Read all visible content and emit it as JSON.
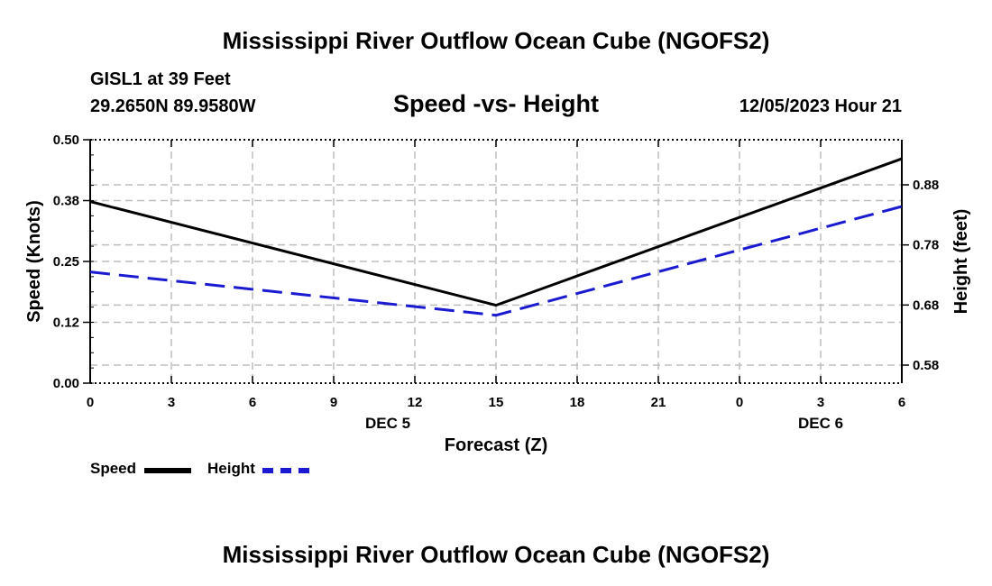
{
  "header": {
    "title": "Mississippi River Outflow Ocean Cube (NGOFS2)",
    "station": "GISL1 at 39 Feet",
    "coords": "29.2650N  89.9580W",
    "subtitle": "Speed -vs- Height",
    "datetime": "12/05/2023 Hour 21"
  },
  "footer": {
    "title": "Mississippi River Outflow Ocean Cube (NGOFS2)"
  },
  "legend": {
    "speed_label": "Speed",
    "height_label": "Height"
  },
  "colors": {
    "speed": "#000000",
    "height": "#1a1ad0",
    "grid": "#bdbdbd"
  },
  "chart_data": {
    "type": "line",
    "title": "Speed -vs- Height",
    "xlabel": "Forecast (Z)",
    "ylabel": "Speed (Knots)",
    "y2label": "Height (feet)",
    "x": [
      0,
      3,
      6,
      9,
      12,
      15,
      18,
      21,
      24,
      27,
      30
    ],
    "x_tick_labels": [
      "0",
      "3",
      "6",
      "9",
      "12",
      "15",
      "18",
      "21",
      "0",
      "3",
      "6"
    ],
    "x_date_labels": [
      {
        "x": 11,
        "label": "DEC 5"
      },
      {
        "x": 27,
        "label": "DEC 6"
      }
    ],
    "xlim": [
      0,
      30
    ],
    "ylim": [
      0,
      0.5
    ],
    "y_ticks": [
      0.0,
      0.125,
      0.25,
      0.375,
      0.5
    ],
    "y_tick_labels": [
      "0.00",
      "0.12",
      "0.25",
      "0.38",
      "0.50"
    ],
    "y2lim": [
      0.55,
      0.955
    ],
    "y2_ticks": [
      0.58,
      0.68,
      0.78,
      0.88
    ],
    "y2_tick_labels": [
      "0.58",
      "0.68",
      "0.78",
      "0.88"
    ],
    "grid": true,
    "series": [
      {
        "name": "Speed",
        "axis": "left",
        "style": "solid",
        "x": [
          0,
          15,
          30
        ],
        "values": [
          0.373,
          0.16,
          0.461
        ]
      },
      {
        "name": "Height",
        "axis": "right",
        "style": "dashed",
        "x": [
          0,
          15,
          30
        ],
        "values": [
          0.735,
          0.663,
          0.844
        ]
      }
    ]
  }
}
